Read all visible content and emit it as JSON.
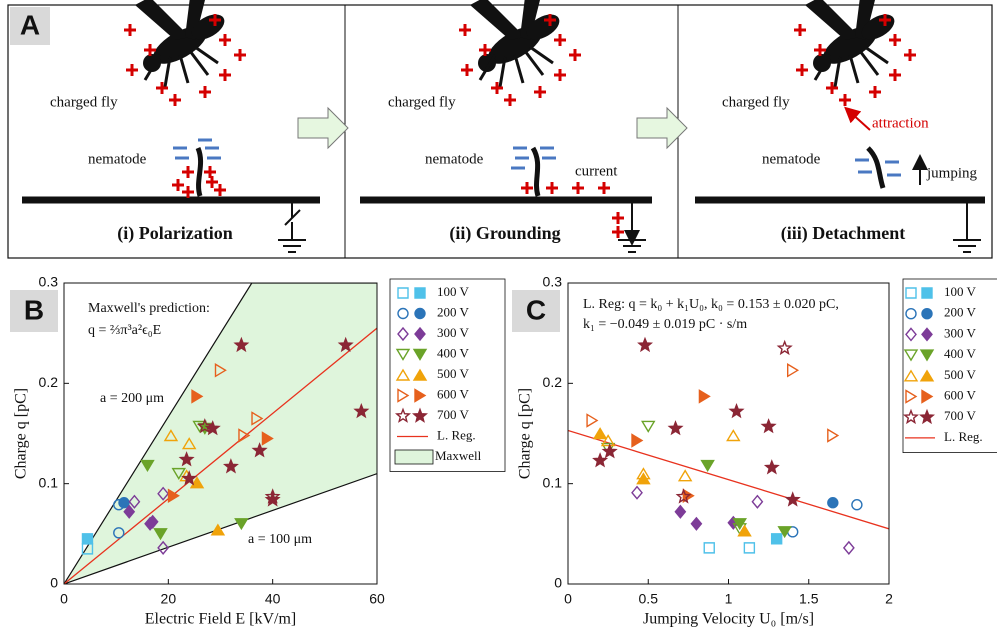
{
  "panel_a": {
    "label": "A",
    "panels": [
      {
        "caption": "(i) Polarization",
        "labels": [
          "charged fly",
          "nematode"
        ]
      },
      {
        "caption": "(ii) Grounding",
        "labels": [
          "charged fly",
          "nematode",
          "current"
        ]
      },
      {
        "caption": "(iii) Detachment",
        "labels": [
          "charged fly",
          "nematode",
          "attraction",
          "jumping"
        ]
      }
    ]
  },
  "chart_data": [
    {
      "type": "scatter",
      "panel": "B",
      "xlabel": "Electric Field E [kV/m]",
      "ylabel": "Charge q [pC]",
      "xlim": [
        0,
        60
      ],
      "ylim": [
        0,
        0.3
      ],
      "xticks": [
        0,
        20,
        40,
        60
      ],
      "yticks": [
        0,
        0.1,
        0.2,
        0.3
      ],
      "annotations": [
        "Maxwell's prediction:",
        "q = ⅔π³a²ϵ₀E",
        "a = 200 μm",
        "a = 100 μm"
      ],
      "series": [
        {
          "name": "100 V",
          "color": "#4fc1e9",
          "marker": "square",
          "x": [
            4.5,
            4.5
          ],
          "values": [
            0.035,
            0.045
          ],
          "filled": [
            false,
            true
          ]
        },
        {
          "name": "200 V",
          "color": "#2b74b8",
          "marker": "circle",
          "x": [
            10.5,
            10.5,
            11.5
          ],
          "values": [
            0.051,
            0.079,
            0.081
          ],
          "filled": [
            false,
            false,
            true
          ]
        },
        {
          "name": "300 V",
          "color": "#7d3c98",
          "marker": "diamond",
          "x": [
            13.5,
            19,
            19,
            12.5,
            16.5,
            17
          ],
          "values": [
            0.082,
            0.09,
            0.036,
            0.072,
            0.06,
            0.062
          ],
          "filled": [
            false,
            false,
            false,
            true,
            true,
            true
          ]
        },
        {
          "name": "400 V",
          "color": "#6aa329",
          "marker": "tri-down",
          "x": [
            22,
            26,
            16,
            18.5,
            34,
            27
          ],
          "values": [
            0.11,
            0.157,
            0.118,
            0.05,
            0.06,
            0.155
          ],
          "filled": [
            false,
            false,
            true,
            true,
            true,
            true
          ]
        },
        {
          "name": "500 V",
          "color": "#f0a30a",
          "marker": "tri-up",
          "x": [
            20.5,
            24,
            23.5,
            25.5,
            29.5
          ],
          "values": [
            0.148,
            0.14,
            0.108,
            0.101,
            0.054
          ],
          "filled": [
            false,
            false,
            false,
            true,
            true
          ]
        },
        {
          "name": "600 V",
          "color": "#e6601d",
          "marker": "tri-right",
          "x": [
            30,
            37,
            34.5,
            25.5,
            21,
            39
          ],
          "values": [
            0.213,
            0.165,
            0.148,
            0.187,
            0.088,
            0.145
          ],
          "filled": [
            false,
            false,
            false,
            true,
            true,
            true
          ]
        },
        {
          "name": "700 V",
          "color": "#8b2635",
          "marker": "star",
          "x": [
            27,
            40,
            34,
            54,
            57,
            23.5,
            24,
            28.5,
            32,
            37.5,
            40
          ],
          "values": [
            0.157,
            0.087,
            0.238,
            0.238,
            0.172,
            0.124,
            0.105,
            0.155,
            0.117,
            0.133,
            0.084
          ],
          "filled": [
            false,
            false,
            true,
            true,
            true,
            true,
            true,
            true,
            true,
            true,
            true
          ]
        }
      ],
      "lines": [
        {
          "name": "L. Reg.",
          "color": "#e8321e",
          "x": [
            0,
            60
          ],
          "values": [
            0,
            0.255
          ]
        }
      ],
      "band": {
        "name": "Maxwell",
        "color": "#dff5dc",
        "x": [
          0,
          36,
          60
        ],
        "upper": [
          0,
          0.3,
          0.3
        ],
        "lower": [
          0,
          0.066,
          0.11
        ]
      }
    },
    {
      "type": "scatter",
      "panel": "C",
      "xlabel": "Jumping Velocity U₀ [m/s]",
      "ylabel": "Charge q [pC]",
      "xlim": [
        0,
        2
      ],
      "ylim": [
        0,
        0.3
      ],
      "xticks": [
        0,
        0.5,
        1,
        1.5,
        2
      ],
      "yticks": [
        0,
        0.1,
        0.2,
        0.3
      ],
      "annotations": [
        "L. Reg: q = k₀ + k₁U₀, k₀ = 0.153 ± 0.020 pC,",
        "k₁ = −0.049 ± 0.019 pC · s/m"
      ],
      "series": [
        {
          "name": "100 V",
          "color": "#4fc1e9",
          "marker": "square",
          "x": [
            0.88,
            1.13,
            1.3
          ],
          "values": [
            0.036,
            0.036,
            0.045
          ],
          "filled": [
            false,
            false,
            true
          ]
        },
        {
          "name": "200 V",
          "color": "#2b74b8",
          "marker": "circle",
          "x": [
            1.8,
            1.4,
            1.65
          ],
          "values": [
            0.079,
            0.052,
            0.081
          ],
          "filled": [
            false,
            false,
            true
          ]
        },
        {
          "name": "300 V",
          "color": "#7d3c98",
          "marker": "diamond",
          "x": [
            0.43,
            1.18,
            1.75,
            0.7,
            0.8,
            1.03
          ],
          "values": [
            0.091,
            0.082,
            0.036,
            0.072,
            0.06,
            0.061
          ],
          "filled": [
            false,
            false,
            false,
            true,
            true,
            true
          ]
        },
        {
          "name": "400 V",
          "color": "#6aa329",
          "marker": "tri-down",
          "x": [
            0.5,
            0.25,
            1.07,
            0.87,
            1.07,
            1.35
          ],
          "values": [
            0.157,
            0.135,
            0.055,
            0.118,
            0.06,
            0.052
          ],
          "filled": [
            false,
            false,
            false,
            true,
            true,
            true
          ]
        },
        {
          "name": "500 V",
          "color": "#f0a30a",
          "marker": "tri-up",
          "x": [
            0.25,
            0.73,
            1.03,
            0.47,
            0.2,
            0.47,
            1.1
          ],
          "values": [
            0.143,
            0.108,
            0.148,
            0.11,
            0.15,
            0.105,
            0.053
          ],
          "filled": [
            false,
            false,
            false,
            false,
            true,
            true,
            true
          ]
        },
        {
          "name": "600 V",
          "color": "#e6601d",
          "marker": "tri-right",
          "x": [
            0.15,
            1.4,
            1.65,
            0.85,
            0.43,
            0.75
          ],
          "values": [
            0.163,
            0.213,
            0.148,
            0.187,
            0.143,
            0.088
          ],
          "filled": [
            false,
            false,
            false,
            true,
            true,
            true
          ]
        },
        {
          "name": "700 V",
          "color": "#8b2635",
          "marker": "star",
          "x": [
            0.72,
            1.35,
            0.48,
            1.05,
            0.67,
            0.2,
            0.26,
            1.25,
            1.27,
            1.4
          ],
          "values": [
            0.087,
            0.235,
            0.238,
            0.172,
            0.155,
            0.123,
            0.132,
            0.157,
            0.116,
            0.084
          ],
          "filled": [
            false,
            false,
            true,
            true,
            true,
            true,
            true,
            true,
            true,
            true
          ]
        }
      ],
      "lines": [
        {
          "name": "L. Reg.",
          "color": "#e8321e",
          "x": [
            0,
            2
          ],
          "values": [
            0.153,
            0.055
          ]
        }
      ]
    }
  ]
}
